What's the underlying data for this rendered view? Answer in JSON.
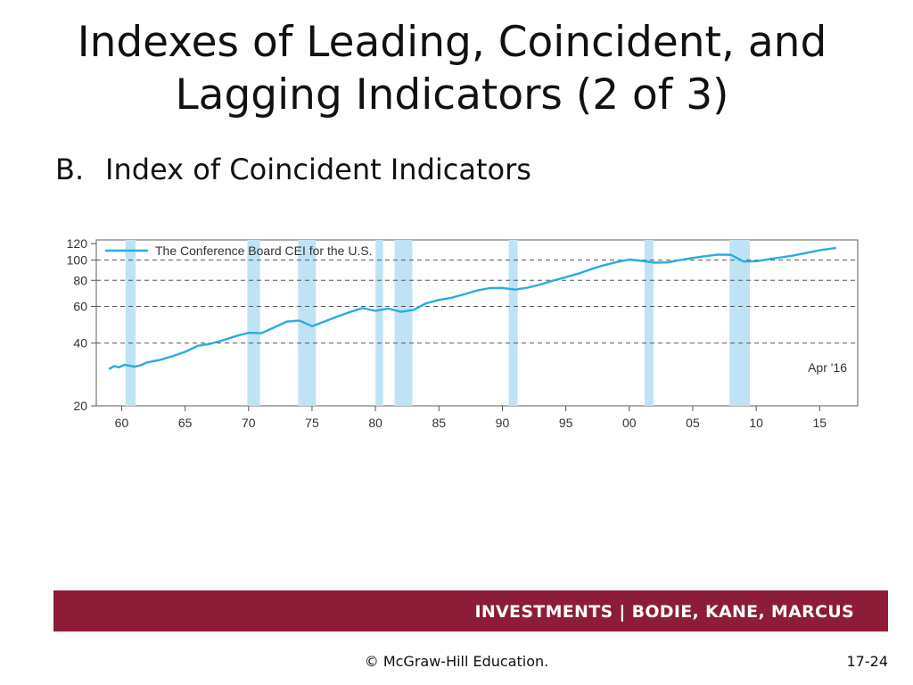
{
  "slide": {
    "title_line1": "Indexes of Leading, Coincident, and",
    "title_line2": "Lagging Indicators (2 of 3)",
    "bullet_marker": "B.",
    "bullet_text": "Index of Coincident Indicators"
  },
  "footer": {
    "band_text": "INVESTMENTS | BODIE, KANE, MARCUS",
    "copyright": "© McGraw-Hill Education.",
    "slide_number": "17-24"
  },
  "colors": {
    "series": "#29abe2",
    "recession_band": "#bfe3f5",
    "footer_band": "#8c1c38",
    "gridline": "#555555"
  },
  "chart_data": {
    "type": "line",
    "y_scale": "log",
    "ylim": [
      20,
      125
    ],
    "y_ticks": [
      20,
      40,
      60,
      80,
      100,
      120
    ],
    "x_ticks": [
      1960,
      1965,
      1970,
      1975,
      1980,
      1985,
      1990,
      1995,
      2000,
      2005,
      2010,
      2015
    ],
    "x_tick_labels": [
      "60",
      "65",
      "70",
      "75",
      "80",
      "85",
      "90",
      "95",
      "00",
      "05",
      "10",
      "15"
    ],
    "xlim": [
      1958,
      2018
    ],
    "dashed_gridlines_at": [
      40,
      60,
      80,
      100
    ],
    "legend": "top-left",
    "annotation": "Apr '16",
    "series": [
      {
        "name": "The Conference Board CEI for the U.S.",
        "x": [
          1959.0,
          1959.4,
          1959.8,
          1960.2,
          1960.6,
          1961.0,
          1961.5,
          1962,
          1963,
          1964,
          1965,
          1966,
          1967,
          1968,
          1969,
          1970,
          1971,
          1972,
          1973,
          1974,
          1975,
          1976,
          1977,
          1978,
          1979,
          1980,
          1981,
          1982,
          1983,
          1984,
          1985,
          1986,
          1987,
          1988,
          1989,
          1990,
          1991,
          1992,
          1993,
          1994,
          1995,
          1996,
          1997,
          1998,
          1999,
          2000,
          2001,
          2002,
          2003,
          2004,
          2005,
          2006,
          2007,
          2008,
          2009,
          2010,
          2011,
          2012,
          2013,
          2014,
          2015,
          2016.3
        ],
        "values": [
          30.0,
          31.0,
          30.6,
          31.5,
          31.2,
          30.8,
          31.3,
          32.3,
          33.2,
          34.6,
          36.3,
          38.8,
          39.7,
          41.3,
          43.2,
          44.8,
          44.6,
          47.5,
          50.7,
          51.3,
          48.2,
          50.8,
          53.6,
          56.4,
          58.9,
          57.1,
          58.6,
          56.5,
          57.7,
          62.1,
          64.4,
          66.0,
          68.6,
          71.5,
          73.4,
          73.6,
          72.2,
          73.8,
          76.4,
          79.8,
          82.8,
          86.2,
          90.6,
          94.5,
          97.9,
          100.6,
          99.2,
          97.2,
          97.5,
          100.0,
          102.4,
          104.5,
          106.4,
          106.0,
          98.5,
          98.8,
          101.0,
          103.2,
          105.4,
          108.5,
          111.5,
          114.5
        ]
      }
    ],
    "recession_bands": [
      [
        1960.3,
        1961.1
      ],
      [
        1969.9,
        1970.9
      ],
      [
        1973.9,
        1975.3
      ],
      [
        1980.0,
        1980.6
      ],
      [
        1981.5,
        1982.9
      ],
      [
        1990.5,
        1991.2
      ],
      [
        2001.2,
        2001.9
      ],
      [
        2007.9,
        2009.5
      ]
    ]
  }
}
